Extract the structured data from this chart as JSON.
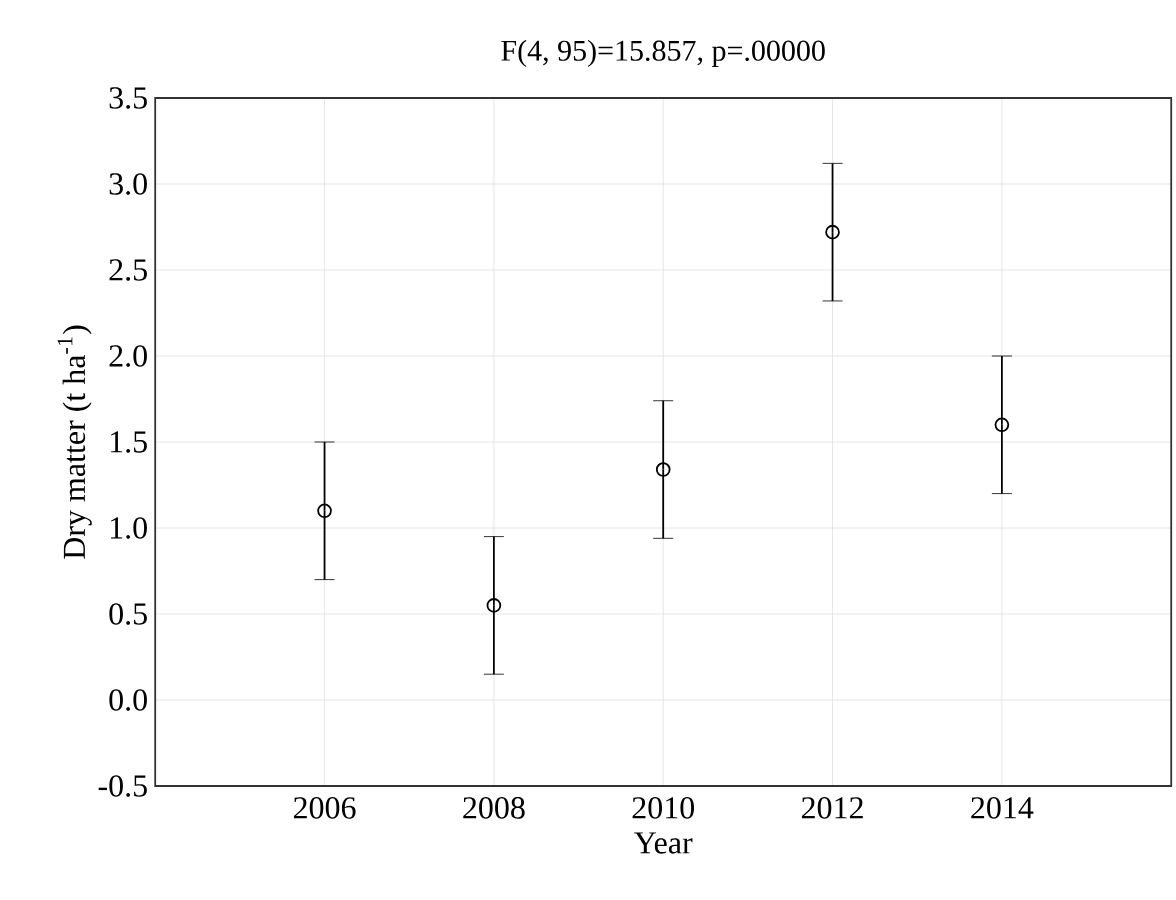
{
  "chart_data": {
    "type": "scatter",
    "title": "F(4, 95)=15.857, p=.00000",
    "xlabel": "Year",
    "ylabel": "Dry matter (t ha$^{-1}$)",
    "x": [
      2006,
      2008,
      2010,
      2012,
      2014
    ],
    "values": [
      1.1,
      0.55,
      1.34,
      2.72,
      1.6
    ],
    "errors": [
      0.4,
      0.4,
      0.4,
      0.4,
      0.4
    ],
    "color": "#000000",
    "marker": "circle",
    "xlim": [
      2004,
      2016
    ],
    "xticks": [
      2006,
      2008,
      2010,
      2012,
      2014
    ],
    "ylim": [
      -0.5,
      3.5
    ],
    "yticks": [
      -0.5,
      {
        "value": 0,
        "label": "0.0"
      },
      0.5,
      {
        "value": 1,
        "label": "1.0"
      },
      1.5,
      {
        "value": 2,
        "label": "2.0"
      },
      2.5,
      {
        "value": 3,
        "label": "3.0"
      },
      3.5
    ],
    "grid": true
  }
}
